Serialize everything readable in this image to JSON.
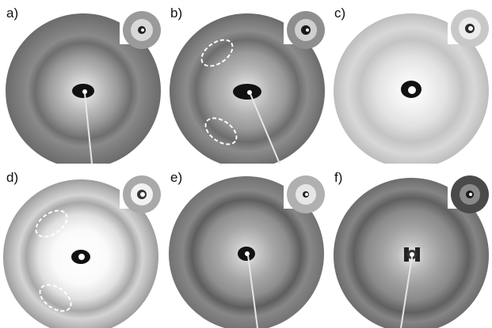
{
  "panels": [
    {
      "label": "a)",
      "tone": "dark-rings",
      "annotated": false
    },
    {
      "label": "b)",
      "tone": "dark-rings",
      "annotated": true
    },
    {
      "label": "c)",
      "tone": "light-rings",
      "annotated": false
    },
    {
      "label": "d)",
      "tone": "light-rings",
      "annotated": true
    },
    {
      "label": "e)",
      "tone": "dark-rings",
      "annotated": false
    },
    {
      "label": "f)",
      "tone": "dark-rings",
      "annotated": false
    }
  ]
}
